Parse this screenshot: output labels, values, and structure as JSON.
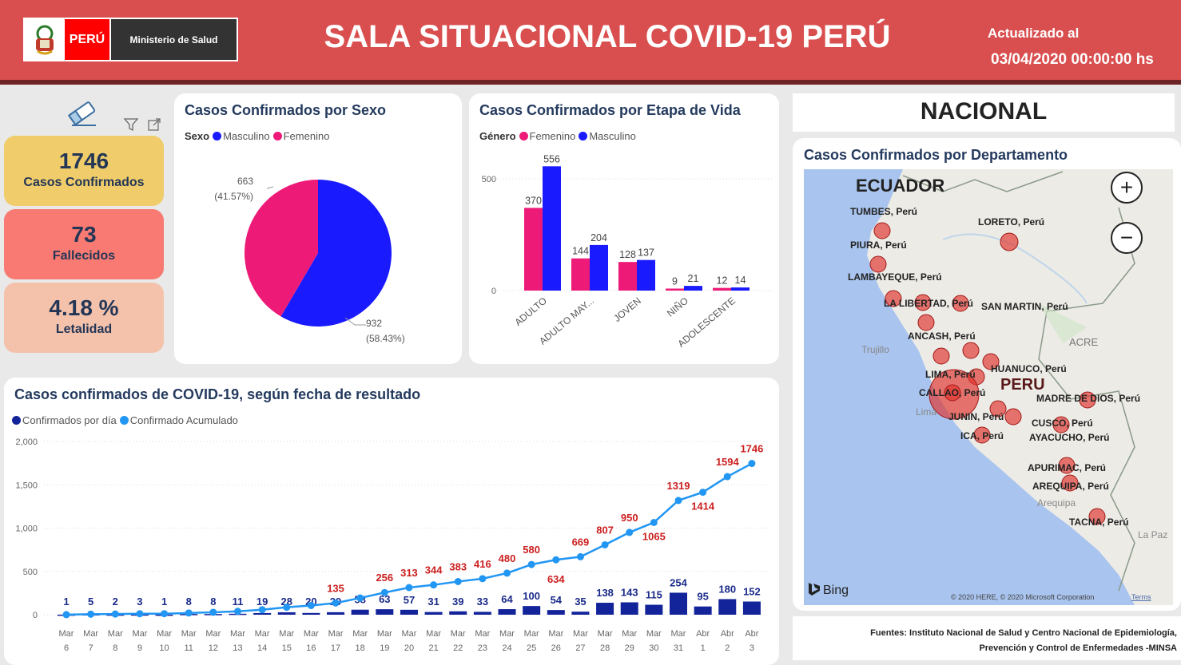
{
  "header": {
    "logo_country": "PERÚ",
    "logo_ministry": "Ministerio de Salud",
    "title": "SALA SITUACIONAL COVID-19 PERÚ",
    "updated_label": "Actualizado al",
    "updated_value": "03/04/2020 00:00:00 hs"
  },
  "kpis": [
    {
      "value": "1746",
      "label": "Casos Confirmados",
      "color": "#f0cd6a"
    },
    {
      "value": "73",
      "label": "Fallecidos",
      "color": "#f87a72"
    },
    {
      "value": "4.18 %",
      "label": "Letalidad",
      "color": "#f4c2ab"
    }
  ],
  "sex_chart": {
    "title": "Casos Confirmados por Sexo",
    "legend_title": "Sexo",
    "chart_data": {
      "type": "pie",
      "slices": [
        {
          "name": "Masculino",
          "value": 932,
          "label": "932",
          "pct": "(58.43%)",
          "color": "#1a1aff"
        },
        {
          "name": "Femenino",
          "value": 663,
          "label": "663",
          "pct": "(41.57%)",
          "color": "#ee1a78"
        }
      ]
    }
  },
  "age_chart": {
    "title": "Casos Confirmados por Etapa de Vida",
    "legend_title": "Género",
    "chart_data": {
      "type": "bar",
      "categories": [
        "ADULTO",
        "ADULTO MAY...",
        "JOVEN",
        "NIÑO",
        "ADOLESCENTE"
      ],
      "series": [
        {
          "name": "Femenino",
          "color": "#ee1a78",
          "values": [
            370,
            144,
            128,
            9,
            12
          ]
        },
        {
          "name": "Masculino",
          "color": "#1a1aff",
          "values": [
            556,
            204,
            137,
            21,
            14
          ]
        }
      ],
      "yticks": [
        "0",
        "500"
      ],
      "ylim": [
        0,
        600
      ]
    }
  },
  "line_chart": {
    "title": "Casos confirmados de COVID-19, según fecha de resultado",
    "chart_data": {
      "type": "bar+line",
      "x_top": [
        "Mar",
        "Mar",
        "Mar",
        "Mar",
        "Mar",
        "Mar",
        "Mar",
        "Mar",
        "Mar",
        "Mar",
        "Mar",
        "Mar",
        "Mar",
        "Mar",
        "Mar",
        "Mar",
        "Mar",
        "Mar",
        "Mar",
        "Mar",
        "Mar",
        "Mar",
        "Mar",
        "Mar",
        "Mar",
        "Mar",
        "Abr",
        "Abr",
        "Abr"
      ],
      "x_bottom": [
        "6",
        "7",
        "8",
        "9",
        "10",
        "11",
        "12",
        "13",
        "14",
        "15",
        "16",
        "17",
        "18",
        "19",
        "20",
        "21",
        "22",
        "23",
        "24",
        "25",
        "26",
        "27",
        "28",
        "29",
        "30",
        "31",
        "1",
        "2",
        "3"
      ],
      "series": [
        {
          "name": "Confirmados por día",
          "color": "#13239a",
          "values": [
            1,
            5,
            2,
            3,
            1,
            8,
            8,
            11,
            19,
            28,
            20,
            29,
            58,
            63,
            57,
            31,
            39,
            33,
            64,
            100,
            54,
            35,
            138,
            143,
            115,
            254,
            95,
            180,
            152
          ]
        },
        {
          "name": "Confirmado Acumulado",
          "color": "#2196f3",
          "values": [
            1,
            6,
            8,
            11,
            12,
            20,
            28,
            39,
            58,
            86,
            106,
            135,
            193,
            256,
            313,
            344,
            383,
            416,
            480,
            580,
            634,
            669,
            807,
            950,
            1065,
            1319,
            1414,
            1594,
            1746
          ]
        }
      ],
      "yticks": [
        "0",
        "500",
        "1,000",
        "1,500",
        "2,000"
      ],
      "ylim": [
        0,
        2000
      ],
      "label_color": "#cc1f1f"
    }
  },
  "national": {
    "title": "NACIONAL"
  },
  "map": {
    "title": "Casos Confirmados por Departamento",
    "country_labels": [
      "ECUADOR",
      "PERU",
      "ACRE"
    ],
    "cities": [
      "Trujillo",
      "Lima",
      "Arequipa",
      "La Paz"
    ],
    "departments": [
      "TUMBES, Perú",
      "LORETO, Perú",
      "PIURA, Perú",
      "LAMBAYEQUE, Perú",
      "LA LIBERTAD, Perú",
      "SAN MARTIN, Perú",
      "ANCASH, Perú",
      "LIMA, Perú",
      "HUANUCO, Perú",
      "CALLAO, Perú",
      "MADRE DE DIOS, Perú",
      "JUNIN, Perú",
      "CUSCO, Perú",
      "ICA, Perú",
      "AYACUCHO, Perú",
      "APURIMAC, Perú",
      "AREQUIPA, Perú",
      "TACNA, Perú"
    ],
    "bing": "Bing",
    "copyright": "© 2020 HERE, © 2020 Microsoft Corporation",
    "terms": "Terms",
    "zoom_in": "+",
    "zoom_out": "−"
  },
  "footer": {
    "line1": "Fuentes: Instituto Nacional de Salud y Centro Nacional de Epidemiología,",
    "line2": "Prevención y Control de Enfermedades -MINSA"
  }
}
